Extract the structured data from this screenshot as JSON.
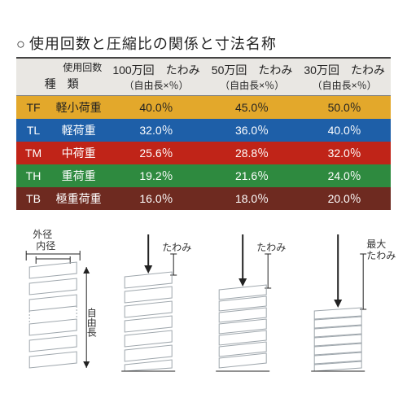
{
  "title": "使用回数と圧縮比の関係と寸法名称",
  "header": {
    "kind_label_top": "使用回数",
    "kind_label_left": "種　類",
    "col1_top": "100万回　たわみ",
    "col1_sub": "（自由長×％）",
    "col2_top": "50万回　たわみ",
    "col2_sub": "（自由長×％）",
    "col3_top": "30万回　たわみ",
    "col3_sub": "（自由長×％）"
  },
  "rows": [
    {
      "code": "TF",
      "name": "軽小荷重",
      "v1": "40.0％",
      "v2": "45.0％",
      "v3": "50.0％",
      "bg": "#e3a82b",
      "fg": "#222222"
    },
    {
      "code": "TL",
      "name": "軽荷重",
      "v1": "32.0％",
      "v2": "36.0％",
      "v3": "40.0％",
      "bg": "#1e5fa8",
      "fg": "#ffffff"
    },
    {
      "code": "TM",
      "name": "中荷重",
      "v1": "25.6％",
      "v2": "28.8％",
      "v3": "32.0％",
      "bg": "#c02418",
      "fg": "#ffffff"
    },
    {
      "code": "TH",
      "name": "重荷重",
      "v1": "19.2％",
      "v2": "21.6％",
      "v3": "24.0％",
      "bg": "#2e8a3f",
      "fg": "#ffffff"
    },
    {
      "code": "TB",
      "name": "極重荷重",
      "v1": "16.0％",
      "v2": "18.0％",
      "v3": "20.0％",
      "bg": "#6e2a20",
      "fg": "#ffffff"
    }
  ],
  "diagram_labels": {
    "outer": "外径",
    "inner": "内径",
    "free_length": "自由長",
    "deflection": "たわみ",
    "max_deflection": "最大\nたわみ"
  },
  "diagram_style": {
    "coil_stroke": "#9ea6ac",
    "label_color": "#333333",
    "arrow_stroke": "#222222",
    "label_fontsize": 12
  }
}
